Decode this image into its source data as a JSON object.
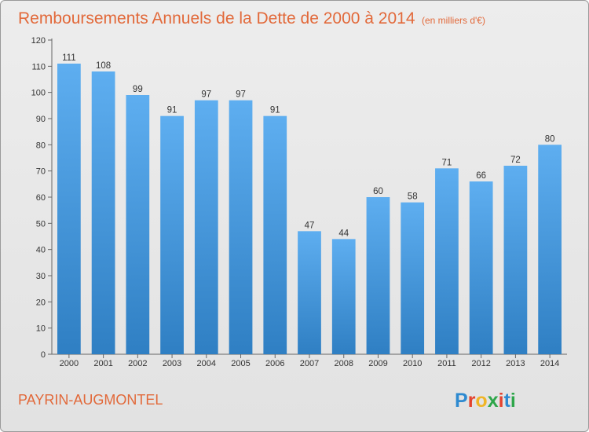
{
  "chart_data": {
    "type": "bar",
    "title": "Remboursements Annuels de la Dette de 2000 à 2014",
    "subtitle": "(en milliers d'€)",
    "categories": [
      "2000",
      "2001",
      "2002",
      "2003",
      "2004",
      "2005",
      "2006",
      "2007",
      "2008",
      "2009",
      "2010",
      "2011",
      "2012",
      "2013",
      "2014"
    ],
    "values": [
      111,
      108,
      99,
      91,
      97,
      97,
      91,
      47,
      44,
      60,
      58,
      71,
      66,
      72,
      80
    ],
    "xlabel": "",
    "ylabel": "",
    "ylim": [
      0,
      120
    ],
    "yticks": [
      0,
      10,
      20,
      30,
      40,
      50,
      60,
      70,
      80,
      90,
      100,
      110,
      120
    ],
    "grid": false,
    "bar_color": "#3d8fd4"
  },
  "footer": {
    "commune": "PAYRIN-AUGMONTEL",
    "logo_letters": [
      {
        "char": "P",
        "color": "#2e8ad0"
      },
      {
        "char": "r",
        "color": "#e3432e"
      },
      {
        "char": "o",
        "color": "#f0b526"
      },
      {
        "char": "x",
        "color": "#2ea64a"
      },
      {
        "char": "i",
        "color": "#e3432e"
      },
      {
        "char": "t",
        "color": "#2e8ad0"
      },
      {
        "char": "i",
        "color": "#2ea64a"
      }
    ]
  }
}
